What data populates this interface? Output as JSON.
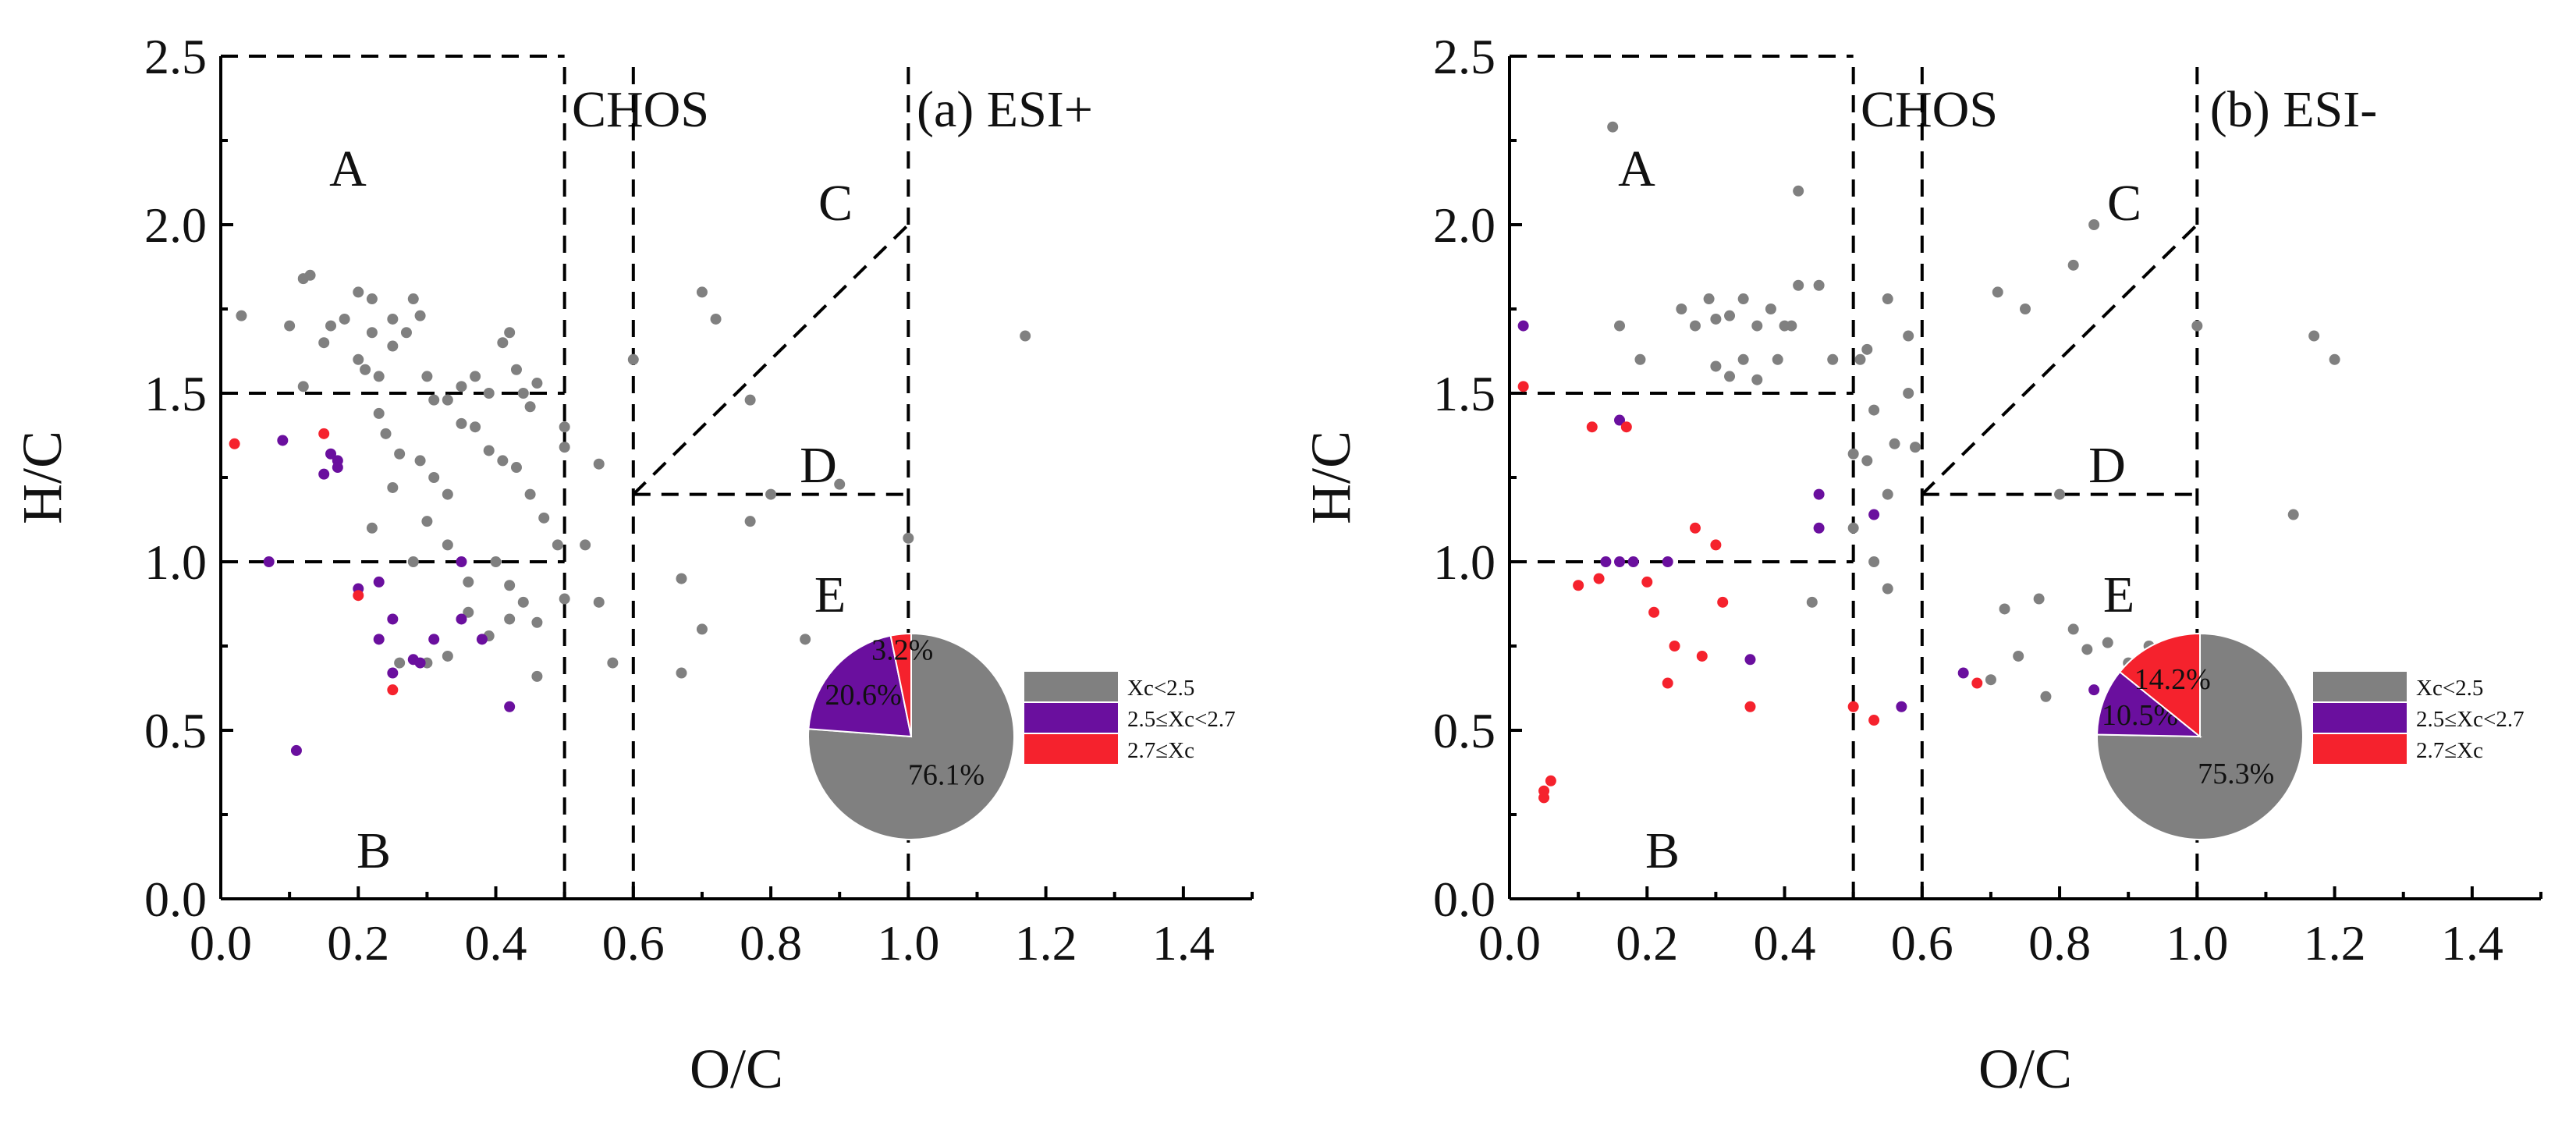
{
  "colors": {
    "low": "#808080",
    "mid": "#6a0f9e",
    "high": "#f5222d"
  },
  "chart_data": [
    {
      "type": "scatter",
      "title": "(a) ESI+",
      "group": "CHOS",
      "xlabel": "O/C",
      "ylabel": "H/C",
      "xlim": [
        0,
        1.5
      ],
      "ylim": [
        0,
        2.5
      ],
      "xticks": [
        "0.0",
        "0.2",
        "0.4",
        "0.6",
        "0.8",
        "1.0",
        "1.2",
        "1.4"
      ],
      "yticks": [
        "0.0",
        "0.5",
        "1.0",
        "1.5",
        "2.0",
        "2.5"
      ],
      "regions": [
        "A",
        "B",
        "C",
        "D",
        "E"
      ],
      "legend": [
        "Xc<2.5",
        "2.5≤Xc<2.7",
        "2.7≤Xc"
      ],
      "pie": {
        "labels": [
          "76.1%",
          "20.6%",
          "3.2%"
        ],
        "values": [
          76.1,
          20.6,
          3.2
        ]
      },
      "series": [
        {
          "key": "low",
          "points": [
            [
              0.03,
              1.73
            ],
            [
              0.1,
              1.7
            ],
            [
              0.12,
              1.84
            ],
            [
              0.13,
              1.85
            ],
            [
              0.12,
              1.52
            ],
            [
              0.15,
              1.65
            ],
            [
              0.16,
              1.7
            ],
            [
              0.18,
              1.72
            ],
            [
              0.2,
              1.8
            ],
            [
              0.2,
              1.6
            ],
            [
              0.21,
              1.57
            ],
            [
              0.22,
              1.78
            ],
            [
              0.22,
              1.68
            ],
            [
              0.23,
              1.55
            ],
            [
              0.25,
              1.72
            ],
            [
              0.25,
              1.64
            ],
            [
              0.27,
              1.68
            ],
            [
              0.28,
              1.78
            ],
            [
              0.29,
              1.73
            ],
            [
              0.3,
              1.55
            ],
            [
              0.31,
              1.48
            ],
            [
              0.33,
              1.48
            ],
            [
              0.35,
              1.52
            ],
            [
              0.37,
              1.55
            ],
            [
              0.39,
              1.5
            ],
            [
              0.41,
              1.65
            ],
            [
              0.42,
              1.68
            ],
            [
              0.43,
              1.57
            ],
            [
              0.44,
              1.5
            ],
            [
              0.45,
              1.46
            ],
            [
              0.46,
              1.53
            ],
            [
              0.5,
              1.4
            ],
            [
              0.5,
              1.34
            ],
            [
              0.35,
              1.41
            ],
            [
              0.37,
              1.4
            ],
            [
              0.39,
              1.33
            ],
            [
              0.41,
              1.3
            ],
            [
              0.33,
              1.2
            ],
            [
              0.31,
              1.25
            ],
            [
              0.29,
              1.3
            ],
            [
              0.26,
              1.32
            ],
            [
              0.24,
              1.38
            ],
            [
              0.23,
              1.44
            ],
            [
              0.25,
              1.22
            ],
            [
              0.43,
              1.28
            ],
            [
              0.45,
              1.2
            ],
            [
              0.47,
              1.13
            ],
            [
              0.49,
              1.05
            ],
            [
              0.22,
              1.1
            ],
            [
              0.3,
              1.12
            ],
            [
              0.33,
              1.05
            ],
            [
              0.28,
              1.0
            ],
            [
              0.36,
              0.94
            ],
            [
              0.4,
              1.0
            ],
            [
              0.42,
              0.93
            ],
            [
              0.44,
              0.88
            ],
            [
              0.46,
              0.82
            ],
            [
              0.5,
              0.89
            ],
            [
              0.53,
              1.05
            ],
            [
              0.55,
              0.88
            ],
            [
              0.36,
              0.85
            ],
            [
              0.39,
              0.78
            ],
            [
              0.42,
              0.83
            ],
            [
              0.33,
              0.72
            ],
            [
              0.3,
              0.7
            ],
            [
              0.26,
              0.7
            ],
            [
              0.46,
              0.66
            ],
            [
              0.57,
              0.7
            ],
            [
              0.67,
              0.95
            ],
            [
              0.7,
              0.8
            ],
            [
              0.67,
              0.67
            ],
            [
              0.7,
              1.8
            ],
            [
              0.72,
              1.72
            ],
            [
              0.77,
              1.48
            ],
            [
              0.77,
              1.12
            ],
            [
              0.8,
              1.2
            ],
            [
              0.85,
              0.77
            ],
            [
              1.0,
              1.07
            ],
            [
              1.17,
              1.67
            ],
            [
              0.9,
              1.23
            ],
            [
              0.55,
              1.29
            ],
            [
              0.6,
              1.6
            ]
          ]
        },
        {
          "key": "mid",
          "points": [
            [
              0.07,
              1.0
            ],
            [
              0.09,
              1.36
            ],
            [
              0.15,
              1.26
            ],
            [
              0.16,
              1.32
            ],
            [
              0.17,
              1.3
            ],
            [
              0.17,
              1.28
            ],
            [
              0.2,
              0.92
            ],
            [
              0.23,
              0.94
            ],
            [
              0.25,
              0.83
            ],
            [
              0.23,
              0.77
            ],
            [
              0.25,
              0.67
            ],
            [
              0.28,
              0.71
            ],
            [
              0.29,
              0.7
            ],
            [
              0.31,
              0.77
            ],
            [
              0.35,
              1.0
            ],
            [
              0.35,
              0.83
            ],
            [
              0.38,
              0.77
            ],
            [
              0.42,
              0.57
            ],
            [
              0.11,
              0.44
            ]
          ]
        },
        {
          "key": "high",
          "points": [
            [
              0.02,
              1.35
            ],
            [
              0.15,
              1.38
            ],
            [
              0.2,
              0.9
            ],
            [
              0.25,
              0.62
            ]
          ]
        }
      ]
    },
    {
      "type": "scatter",
      "title": "(b) ESI-",
      "group": "CHOS",
      "xlabel": "O/C",
      "ylabel": "H/C",
      "xlim": [
        0,
        1.5
      ],
      "ylim": [
        0,
        2.5
      ],
      "xticks": [
        "0.0",
        "0.2",
        "0.4",
        "0.6",
        "0.8",
        "1.0",
        "1.2",
        "1.4"
      ],
      "yticks": [
        "0.0",
        "0.5",
        "1.0",
        "1.5",
        "2.0",
        "2.5"
      ],
      "regions": [
        "A",
        "B",
        "C",
        "D",
        "E"
      ],
      "legend": [
        "Xc<2.5",
        "2.5≤Xc<2.7",
        "2.7≤Xc"
      ],
      "pie": {
        "labels": [
          "75.3%",
          "10.5%",
          "14.2%"
        ],
        "values": [
          75.3,
          10.5,
          14.2
        ]
      },
      "series": [
        {
          "key": "low",
          "points": [
            [
              0.15,
              2.29
            ],
            [
              0.16,
              1.7
            ],
            [
              0.19,
              1.6
            ],
            [
              0.25,
              1.75
            ],
            [
              0.27,
              1.7
            ],
            [
              0.29,
              1.78
            ],
            [
              0.3,
              1.72
            ],
            [
              0.32,
              1.73
            ],
            [
              0.34,
              1.78
            ],
            [
              0.36,
              1.7
            ],
            [
              0.38,
              1.75
            ],
            [
              0.4,
              1.7
            ],
            [
              0.42,
              1.82
            ],
            [
              0.45,
              1.82
            ],
            [
              0.47,
              1.6
            ],
            [
              0.3,
              1.58
            ],
            [
              0.32,
              1.55
            ],
            [
              0.34,
              1.6
            ],
            [
              0.36,
              1.54
            ],
            [
              0.39,
              1.6
            ],
            [
              0.41,
              1.7
            ],
            [
              0.42,
              2.1
            ],
            [
              0.51,
              1.6
            ],
            [
              0.52,
              1.63
            ],
            [
              0.53,
              1.45
            ],
            [
              0.55,
              1.78
            ],
            [
              0.56,
              1.35
            ],
            [
              0.58,
              1.67
            ],
            [
              0.58,
              1.5
            ],
            [
              0.59,
              1.34
            ],
            [
              0.5,
              1.32
            ],
            [
              0.52,
              1.3
            ],
            [
              0.55,
              1.2
            ],
            [
              0.5,
              1.1
            ],
            [
              0.53,
              1.0
            ],
            [
              0.55,
              0.92
            ],
            [
              0.44,
              0.88
            ],
            [
              0.71,
              1.8
            ],
            [
              0.75,
              1.75
            ],
            [
              0.82,
              1.88
            ],
            [
              0.85,
              2.0
            ],
            [
              0.72,
              0.86
            ],
            [
              0.7,
              0.65
            ],
            [
              0.74,
              0.72
            ],
            [
              0.77,
              0.89
            ],
            [
              0.78,
              0.6
            ],
            [
              0.82,
              0.8
            ],
            [
              0.84,
              0.74
            ],
            [
              0.87,
              0.76
            ],
            [
              0.9,
              0.7
            ],
            [
              0.93,
              0.75
            ],
            [
              0.96,
              0.6
            ],
            [
              0.8,
              1.2
            ],
            [
              1.14,
              1.14
            ],
            [
              1.17,
              1.67
            ],
            [
              1.2,
              1.6
            ],
            [
              1.0,
              1.7
            ]
          ]
        },
        {
          "key": "mid",
          "points": [
            [
              0.02,
              1.7
            ],
            [
              0.16,
              1.42
            ],
            [
              0.14,
              1.0
            ],
            [
              0.16,
              1.0
            ],
            [
              0.18,
              1.0
            ],
            [
              0.23,
              1.0
            ],
            [
              0.45,
              1.2
            ],
            [
              0.45,
              1.1
            ],
            [
              0.53,
              1.14
            ],
            [
              0.35,
              0.71
            ],
            [
              0.57,
              0.57
            ],
            [
              0.66,
              0.67
            ],
            [
              0.85,
              0.62
            ]
          ]
        },
        {
          "key": "high",
          "points": [
            [
              0.02,
              1.52
            ],
            [
              0.12,
              1.4
            ],
            [
              0.17,
              1.4
            ],
            [
              0.1,
              0.93
            ],
            [
              0.13,
              0.95
            ],
            [
              0.2,
              0.94
            ],
            [
              0.21,
              0.85
            ],
            [
              0.24,
              0.75
            ],
            [
              0.27,
              1.1
            ],
            [
              0.3,
              1.05
            ],
            [
              0.31,
              0.88
            ],
            [
              0.28,
              0.72
            ],
            [
              0.23,
              0.64
            ],
            [
              0.35,
              0.57
            ],
            [
              0.5,
              0.57
            ],
            [
              0.53,
              0.53
            ],
            [
              0.06,
              0.35
            ],
            [
              0.05,
              0.3
            ],
            [
              0.05,
              0.32
            ],
            [
              0.68,
              0.64
            ]
          ]
        }
      ]
    }
  ]
}
